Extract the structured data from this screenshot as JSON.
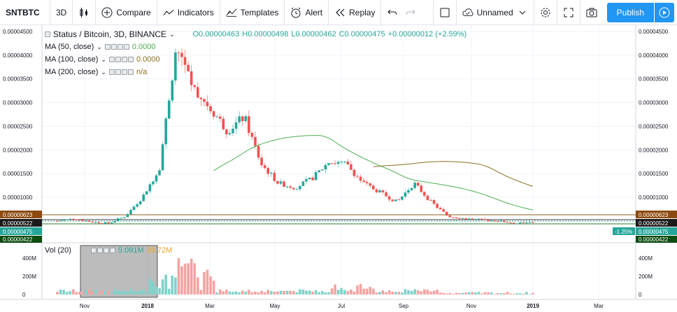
{
  "toolbar": {
    "symbol": "SNTBTC",
    "interval": "3D",
    "compare": "Compare",
    "indicators": "Indicators",
    "templates": "Templates",
    "alert": "Alert",
    "replay": "Replay",
    "layout_name": "Unnamed",
    "publish": "Publish"
  },
  "legend": {
    "title": "Status / Bitcoin, 3D, BINANCE",
    "o": "O0.00000463",
    "h": "H0.00000498",
    "l": "L0.00000462",
    "c": "C0.00000475",
    "change": "+0.00000012 (+2.59%)",
    "ma50": "MA (50, close)",
    "ma50_val": "0.0000",
    "ma100": "MA (100, close)",
    "ma100_val": "0.0000",
    "ma200": "MA (200, close)",
    "ma200_val": "n/a",
    "vol": "Vol (20)",
    "vol_val": "5.091M",
    "vol_ma": "39.72M"
  },
  "price_axis": {
    "ticks": [
      "0.00004500",
      "0.00004000",
      "0.00003500",
      "0.00003000",
      "0.00002500",
      "0.00002000",
      "0.00001500",
      "0.00001000"
    ],
    "badge_623": "0.00000623",
    "badge_522": "0.00000522",
    "badge_475": "0.00000475",
    "badge_422": "0.00000422",
    "change_badge": "-1.25%"
  },
  "vol_axis": {
    "ticks": [
      "400M",
      "200M",
      "0"
    ]
  },
  "time_axis": {
    "labels": [
      "Nov",
      "2018",
      "Mar",
      "May",
      "Jul",
      "Sep",
      "Nov",
      "2019",
      "Mar"
    ]
  },
  "colors": {
    "up": "#26a69a",
    "down": "#ef5350",
    "ma50": "#4caf50",
    "ma100": "#8d6e1e",
    "accent": "#2196f3"
  },
  "chart_data": {
    "type": "candlestick",
    "title": "Status / Bitcoin, 3D, BINANCE",
    "ylim": [
      0,
      4.5e-05
    ],
    "price_path": [
      [
        5e-06,
        "2017-10-15"
      ],
      [
        5.5e-06,
        "2017-11-01"
      ],
      [
        4.8e-06,
        "2017-11-20"
      ],
      [
        4.5e-06,
        "2017-12-05"
      ],
      [
        6e-06,
        "2017-12-15"
      ],
      [
        1e-05,
        "2017-12-22"
      ],
      [
        1.6e-05,
        "2017-12-30"
      ],
      [
        4.2e-05,
        "2018-01-06"
      ],
      [
        3.3e-05,
        "2018-01-12"
      ],
      [
        2.9e-05,
        "2018-01-20"
      ],
      [
        2.4e-05,
        "2018-02-01"
      ],
      [
        2.7e-05,
        "2018-02-10"
      ],
      [
        1.7e-05,
        "2018-02-25"
      ],
      [
        1.3e-05,
        "2018-03-10"
      ],
      [
        1.2e-05,
        "2018-03-25"
      ],
      [
        1.4e-05,
        "2018-04-10"
      ],
      [
        1.75e-05,
        "2018-04-25"
      ],
      [
        1.7e-05,
        "2018-05-10"
      ],
      [
        1.3e-05,
        "2018-05-30"
      ],
      [
        1.1e-05,
        "2018-06-15"
      ],
      [
        9e-06,
        "2018-07-01"
      ],
      [
        1.3e-05,
        "2018-07-05"
      ],
      [
        9e-06,
        "2018-07-25"
      ],
      [
        6e-06,
        "2018-08-15"
      ],
      [
        5.5e-06,
        "2018-09-01"
      ],
      [
        5.2e-06,
        "2018-10-01"
      ],
      [
        5e-06,
        "2018-11-01"
      ],
      [
        4.5e-06,
        "2018-12-01"
      ],
      [
        4.7e-06,
        "2018-12-15"
      ]
    ]
  }
}
